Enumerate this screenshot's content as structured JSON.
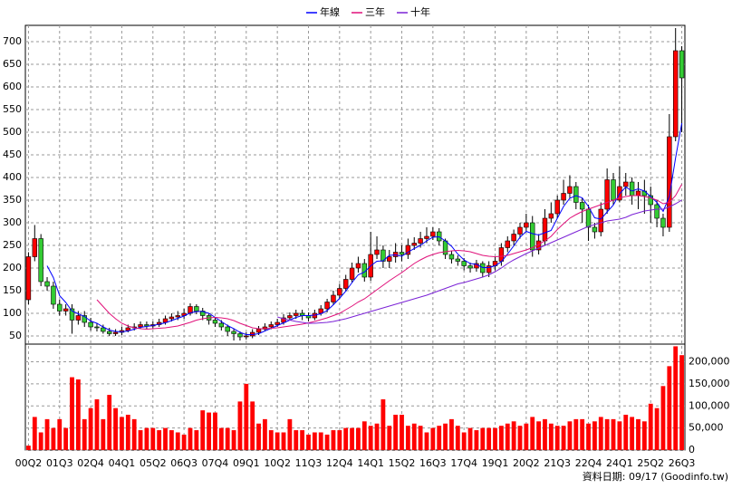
{
  "chart_data": {
    "type": "candlestick",
    "legend": "top",
    "grid": true,
    "up_color": "#ff0000",
    "down_color": "#33cc33",
    "categories": [
      "00Q2",
      null,
      null,
      null,
      null,
      "01Q3",
      null,
      null,
      null,
      null,
      "02Q4",
      null,
      null,
      null,
      null,
      "04Q1",
      null,
      null,
      null,
      null,
      "05Q2",
      null,
      null,
      null,
      null,
      "06Q3",
      null,
      null,
      null,
      null,
      "07Q4",
      null,
      null,
      null,
      null,
      "09Q1",
      null,
      null,
      null,
      null,
      "10Q2",
      null,
      null,
      null,
      null,
      "11Q3",
      null,
      null,
      null,
      null,
      "12Q4",
      null,
      null,
      null,
      null,
      "14Q1",
      null,
      null,
      null,
      null,
      "15Q2",
      null,
      null,
      null,
      null,
      "16Q3",
      null,
      null,
      null,
      null,
      "17Q4",
      null,
      null,
      null,
      null,
      "19Q1",
      null,
      null,
      null,
      null,
      "20Q2",
      null,
      null,
      null,
      null,
      "21Q3",
      null,
      null,
      null,
      null,
      "22Q4",
      null,
      null,
      null,
      null,
      "24Q1",
      null,
      null,
      null,
      null,
      "25Q2",
      null,
      null,
      null,
      null,
      "26Q3"
    ],
    "open": [
      130,
      225,
      265,
      170,
      160,
      120,
      105,
      110,
      85,
      95,
      80,
      70,
      68,
      60,
      55,
      58,
      62,
      68,
      70,
      75,
      72,
      75,
      80,
      88,
      92,
      95,
      100,
      115,
      105,
      95,
      85,
      78,
      70,
      60,
      55,
      48,
      50,
      58,
      65,
      70,
      75,
      80,
      90,
      95,
      100,
      95,
      90,
      100,
      110,
      125,
      140,
      155,
      175,
      200,
      210,
      180,
      230,
      240,
      215,
      225,
      235,
      230,
      250,
      255,
      265,
      270,
      280,
      260,
      230,
      220,
      215,
      205,
      200,
      210,
      190,
      205,
      215,
      245,
      260,
      275,
      290,
      300,
      240,
      260,
      310,
      320,
      350,
      365,
      380,
      345,
      330,
      290,
      280,
      330,
      395,
      350,
      380,
      390,
      360,
      370,
      360,
      340,
      310,
      290,
      490,
      680
    ],
    "high": [
      235,
      295,
      275,
      180,
      170,
      130,
      120,
      120,
      105,
      105,
      90,
      78,
      75,
      68,
      65,
      70,
      75,
      78,
      82,
      82,
      82,
      88,
      95,
      100,
      105,
      110,
      122,
      120,
      112,
      100,
      92,
      85,
      75,
      65,
      60,
      58,
      65,
      72,
      78,
      82,
      88,
      98,
      102,
      108,
      108,
      102,
      108,
      118,
      132,
      150,
      165,
      185,
      212,
      225,
      220,
      280,
      270,
      250,
      240,
      255,
      250,
      265,
      268,
      280,
      290,
      290,
      288,
      265,
      238,
      228,
      222,
      212,
      218,
      215,
      215,
      225,
      255,
      270,
      285,
      300,
      320,
      315,
      275,
      330,
      345,
      360,
      395,
      405,
      390,
      355,
      340,
      300,
      345,
      420,
      410,
      425,
      410,
      400,
      390,
      395,
      380,
      350,
      320,
      540,
      730,
      690
    ],
    "low": [
      120,
      215,
      160,
      150,
      110,
      95,
      95,
      55,
      75,
      70,
      62,
      60,
      55,
      50,
      50,
      52,
      58,
      62,
      65,
      65,
      65,
      70,
      75,
      82,
      85,
      88,
      95,
      98,
      85,
      75,
      70,
      62,
      50,
      40,
      40,
      42,
      45,
      52,
      60,
      65,
      70,
      75,
      85,
      88,
      85,
      82,
      85,
      95,
      102,
      118,
      132,
      148,
      168,
      190,
      170,
      172,
      220,
      200,
      200,
      212,
      215,
      220,
      240,
      245,
      255,
      262,
      250,
      220,
      210,
      205,
      195,
      190,
      192,
      180,
      180,
      195,
      205,
      235,
      250,
      265,
      280,
      225,
      230,
      250,
      300,
      310,
      340,
      355,
      330,
      300,
      260,
      265,
      270,
      320,
      340,
      345,
      360,
      340,
      330,
      320,
      300,
      290,
      270,
      280,
      480,
      500
    ],
    "close": [
      225,
      265,
      170,
      160,
      120,
      105,
      110,
      85,
      95,
      80,
      70,
      68,
      60,
      55,
      58,
      62,
      68,
      70,
      75,
      72,
      75,
      80,
      88,
      92,
      95,
      100,
      115,
      105,
      95,
      85,
      78,
      70,
      60,
      55,
      48,
      50,
      58,
      65,
      70,
      75,
      80,
      90,
      95,
      100,
      95,
      90,
      100,
      110,
      125,
      140,
      155,
      175,
      200,
      210,
      180,
      230,
      240,
      215,
      225,
      235,
      230,
      250,
      255,
      265,
      270,
      280,
      260,
      230,
      220,
      215,
      205,
      200,
      210,
      190,
      205,
      215,
      245,
      260,
      275,
      290,
      300,
      240,
      260,
      310,
      320,
      350,
      365,
      380,
      345,
      330,
      290,
      280,
      330,
      395,
      350,
      380,
      390,
      360,
      370,
      360,
      340,
      310,
      290,
      490,
      680,
      620
    ],
    "ylim": [
      32,
      736
    ],
    "yticks": [
      50,
      100,
      150,
      200,
      250,
      300,
      350,
      400,
      450,
      500,
      550,
      600,
      650,
      700
    ],
    "series": [
      {
        "name": "年線",
        "color": "#0000ff",
        "values": [
          null,
          null,
          null,
          205,
          179,
          139,
          124,
          105,
          99,
          93,
          83,
          78,
          70,
          63,
          60,
          59,
          61,
          65,
          69,
          71,
          73,
          76,
          79,
          84,
          89,
          94,
          101,
          104,
          104,
          100,
          91,
          82,
          73,
          66,
          58,
          53,
          53,
          55,
          61,
          67,
          73,
          79,
          85,
          91,
          95,
          95,
          96,
          99,
          106,
          119,
          133,
          149,
          168,
          185,
          191,
          205,
          215,
          216,
          228,
          229,
          226,
          235,
          243,
          250,
          260,
          268,
          269,
          260,
          248,
          231,
          218,
          210,
          208,
          201,
          201,
          205,
          214,
          231,
          249,
          268,
          281,
          276,
          273,
          278,
          283,
          310,
          336,
          354,
          360,
          355,
          336,
          311,
          308,
          324,
          339,
          364,
          379,
          370,
          375,
          370,
          358,
          345,
          325,
          358,
          443,
          520
        ]
      },
      {
        "name": "三年",
        "color": "#e0107a",
        "values": [
          null,
          null,
          null,
          null,
          null,
          null,
          null,
          null,
          null,
          null,
          null,
          130,
          115,
          100,
          88,
          78,
          72,
          68,
          66,
          65,
          66,
          67,
          68,
          70,
          72,
          76,
          80,
          85,
          88,
          90,
          91,
          90,
          88,
          84,
          78,
          73,
          68,
          66,
          66,
          67,
          68,
          70,
          72,
          74,
          76,
          79,
          82,
          86,
          90,
          95,
          100,
          108,
          116,
          125,
          132,
          142,
          152,
          162,
          172,
          181,
          190,
          200,
          210,
          218,
          225,
          230,
          234,
          236,
          238,
          239,
          238,
          236,
          232,
          228,
          226,
          225,
          226,
          228,
          232,
          236,
          240,
          245,
          252,
          260,
          270,
          285,
          298,
          310,
          318,
          325,
          330,
          335,
          340,
          345,
          350,
          355,
          358,
          360,
          360,
          358,
          355,
          350,
          342,
          345,
          360,
          385
        ]
      },
      {
        "name": "十年",
        "color": "#7b22d6",
        "values": [
          null,
          null,
          null,
          null,
          null,
          null,
          null,
          null,
          null,
          null,
          null,
          null,
          null,
          null,
          null,
          null,
          null,
          null,
          null,
          null,
          null,
          null,
          null,
          null,
          null,
          null,
          null,
          null,
          null,
          null,
          null,
          null,
          null,
          null,
          null,
          null,
          null,
          null,
          null,
          null,
          92,
          88,
          85,
          82,
          80,
          78,
          78,
          79,
          80,
          82,
          85,
          88,
          92,
          96,
          100,
          104,
          108,
          112,
          116,
          120,
          124,
          128,
          132,
          136,
          140,
          145,
          150,
          155,
          160,
          165,
          168,
          172,
          176,
          180,
          185,
          192,
          200,
          210,
          218,
          225,
          232,
          238,
          244,
          250,
          256,
          262,
          268,
          274,
          280,
          286,
          292,
          296,
          300,
          304,
          306,
          308,
          312,
          318,
          322,
          326,
          328,
          330,
          330,
          335,
          342,
          350
        ]
      }
    ],
    "volume": {
      "color": "#ff0000",
      "values": [
        10000,
        75000,
        40000,
        70000,
        50000,
        70000,
        50000,
        165000,
        160000,
        70000,
        95000,
        115000,
        70000,
        125000,
        95000,
        75000,
        80000,
        70000,
        45000,
        50000,
        50000,
        45000,
        50000,
        45000,
        40000,
        35000,
        50000,
        45000,
        90000,
        85000,
        85000,
        50000,
        50000,
        45000,
        110000,
        150000,
        110000,
        60000,
        70000,
        45000,
        40000,
        40000,
        70000,
        45000,
        45000,
        35000,
        40000,
        40000,
        35000,
        45000,
        45000,
        50000,
        50000,
        50000,
        65000,
        55000,
        60000,
        115000,
        55000,
        80000,
        80000,
        55000,
        60000,
        55000,
        40000,
        50000,
        55000,
        60000,
        70000,
        55000,
        40000,
        50000,
        45000,
        50000,
        50000,
        50000,
        55000,
        60000,
        65000,
        55000,
        60000,
        75000,
        65000,
        70000,
        60000,
        55000,
        55000,
        65000,
        70000,
        70000,
        60000,
        65000,
        75000,
        70000,
        70000,
        65000,
        80000,
        75000,
        70000,
        65000,
        105000,
        95000,
        145000,
        190000,
        235000,
        215000
      ],
      "ylim": [
        0,
        240000
      ],
      "yticks": [
        0,
        {
          "value": 50000,
          "label": "50,000"
        },
        {
          "value": 100000,
          "label": "100,000"
        },
        {
          "value": 150000,
          "label": "150,000"
        },
        {
          "value": 200000,
          "label": "200,000"
        }
      ]
    },
    "source": "資料日期: 09/17  (Goodinfo.tw)"
  }
}
